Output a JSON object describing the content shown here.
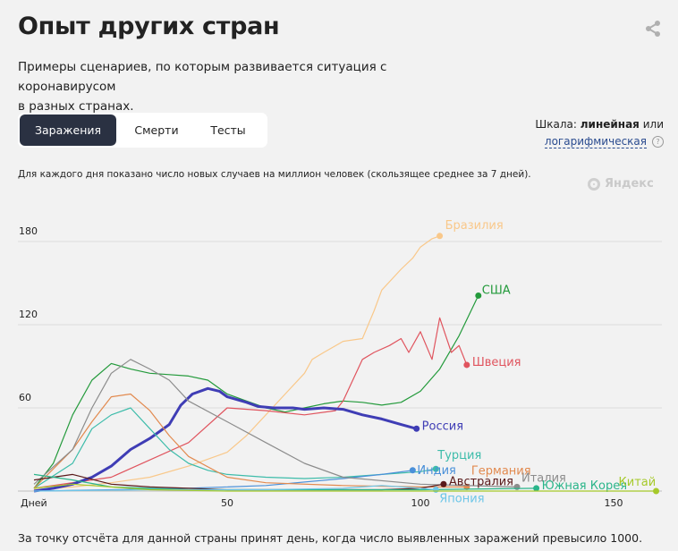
{
  "header": {
    "title": "Опыт других стран",
    "subtitle_line1": "Примеры сценариев, по которым развивается ситуация с коронавирусом",
    "subtitle_line2": "в разных странах."
  },
  "tabs": [
    {
      "label": "Заражения",
      "active": true
    },
    {
      "label": "Смерти",
      "active": false
    },
    {
      "label": "Тесты",
      "active": false
    }
  ],
  "scale": {
    "prefix": "Шкала:",
    "current": "линейная",
    "or": "или",
    "alternative": "логарифмическая",
    "help": "?"
  },
  "note": "Для каждого дня показано число новых случаев на миллион человек (скользящее среднее за 7 дней).",
  "watermark": "Яндекс",
  "footer": "За точку отсчёта для данной страны принят день, когда число выявленных заражений превысило 1000.",
  "chart_data": {
    "type": "line",
    "xlabel": "Дней",
    "x_ticks": [
      50,
      100,
      150
    ],
    "y_ticks": [
      60,
      120,
      180
    ],
    "xlim": [
      0,
      162
    ],
    "ylim": [
      0,
      190
    ],
    "series": [
      {
        "name": "Бразилия",
        "color": "#f9c88a",
        "x": [
          0,
          10,
          20,
          30,
          40,
          50,
          55,
          60,
          65,
          70,
          72,
          75,
          80,
          85,
          88,
          90,
          95,
          98,
          100,
          103,
          105
        ],
        "y": [
          1,
          3,
          6,
          10,
          18,
          28,
          40,
          55,
          70,
          85,
          95,
          100,
          108,
          110,
          130,
          145,
          160,
          168,
          176,
          182,
          184
        ]
      },
      {
        "name": "США",
        "color": "#239a3b",
        "x": [
          0,
          5,
          10,
          15,
          20,
          25,
          30,
          35,
          40,
          45,
          50,
          55,
          60,
          65,
          70,
          75,
          80,
          85,
          90,
          95,
          100,
          105,
          110,
          115
        ],
        "y": [
          2,
          20,
          55,
          80,
          92,
          88,
          85,
          84,
          83,
          80,
          70,
          65,
          60,
          57,
          60,
          63,
          65,
          64,
          62,
          64,
          72,
          88,
          112,
          141
        ]
      },
      {
        "name": "Швеция",
        "color": "#e0545e",
        "x": [
          0,
          20,
          40,
          50,
          60,
          70,
          78,
          80,
          85,
          88,
          92,
          95,
          97,
          100,
          103,
          105,
          108,
          110,
          112
        ],
        "y": [
          2,
          10,
          35,
          60,
          58,
          55,
          58,
          65,
          95,
          100,
          105,
          110,
          100,
          115,
          95,
          125,
          100,
          105,
          91
        ]
      },
      {
        "name": "Россия",
        "color": "#3f3db5",
        "x": [
          0,
          5,
          10,
          15,
          20,
          25,
          30,
          35,
          38,
          41,
          45,
          48,
          50,
          55,
          58,
          62,
          67,
          70,
          75,
          80,
          85,
          90,
          95,
          99
        ],
        "y": [
          0,
          2,
          5,
          10,
          18,
          30,
          38,
          48,
          62,
          70,
          74,
          72,
          68,
          64,
          61,
          60,
          60,
          59,
          60,
          59,
          55,
          52,
          48,
          45
        ]
      },
      {
        "name": "Турция",
        "color": "#3dbcaa",
        "x": [
          0,
          10,
          15,
          20,
          25,
          30,
          35,
          40,
          45,
          50,
          60,
          70,
          80,
          90,
          100,
          104
        ],
        "y": [
          2,
          20,
          45,
          55,
          60,
          45,
          30,
          20,
          15,
          12,
          10,
          9,
          10,
          12,
          14,
          16
        ]
      },
      {
        "name": "Индия",
        "color": "#4a90d9",
        "x": [
          0,
          20,
          40,
          60,
          80,
          90,
          98
        ],
        "y": [
          0,
          1,
          2,
          4,
          9,
          12,
          15
        ]
      },
      {
        "name": "Германия",
        "color": "#e28a4f",
        "x": [
          0,
          10,
          15,
          20,
          25,
          30,
          35,
          40,
          50,
          60,
          80,
          100,
          112
        ],
        "y": [
          2,
          30,
          50,
          68,
          70,
          58,
          40,
          25,
          10,
          6,
          4,
          3,
          3
        ]
      },
      {
        "name": "Италия",
        "color": "#8c8c8c",
        "x": [
          0,
          10,
          15,
          20,
          25,
          30,
          35,
          40,
          50,
          60,
          70,
          80,
          100,
          125
        ],
        "y": [
          5,
          30,
          60,
          85,
          95,
          88,
          80,
          65,
          50,
          35,
          20,
          10,
          5,
          3
        ]
      },
      {
        "name": "Австралия",
        "color": "#5a1a1a",
        "x": [
          0,
          10,
          20,
          30,
          40,
          50,
          70,
          90,
          100,
          106
        ],
        "y": [
          8,
          12,
          5,
          3,
          2,
          1,
          1,
          1,
          2,
          5
        ]
      },
      {
        "name": "Южная Корея",
        "color": "#2ab58a",
        "x": [
          0,
          10,
          20,
          30,
          40,
          60,
          80,
          100,
          130
        ],
        "y": [
          12,
          8,
          3,
          2,
          1,
          1,
          1,
          1,
          2
        ]
      },
      {
        "name": "Япония",
        "color": "#6ec6e8",
        "x": [
          0,
          30,
          60,
          80,
          90,
          100,
          104
        ],
        "y": [
          0,
          1,
          1,
          2,
          4,
          2,
          1
        ]
      },
      {
        "name": "Китай",
        "color": "#a6c92a",
        "x": [
          0,
          10,
          20,
          30,
          50,
          100,
          161
        ],
        "y": [
          2,
          5,
          3,
          1,
          0,
          0,
          0
        ]
      }
    ]
  }
}
